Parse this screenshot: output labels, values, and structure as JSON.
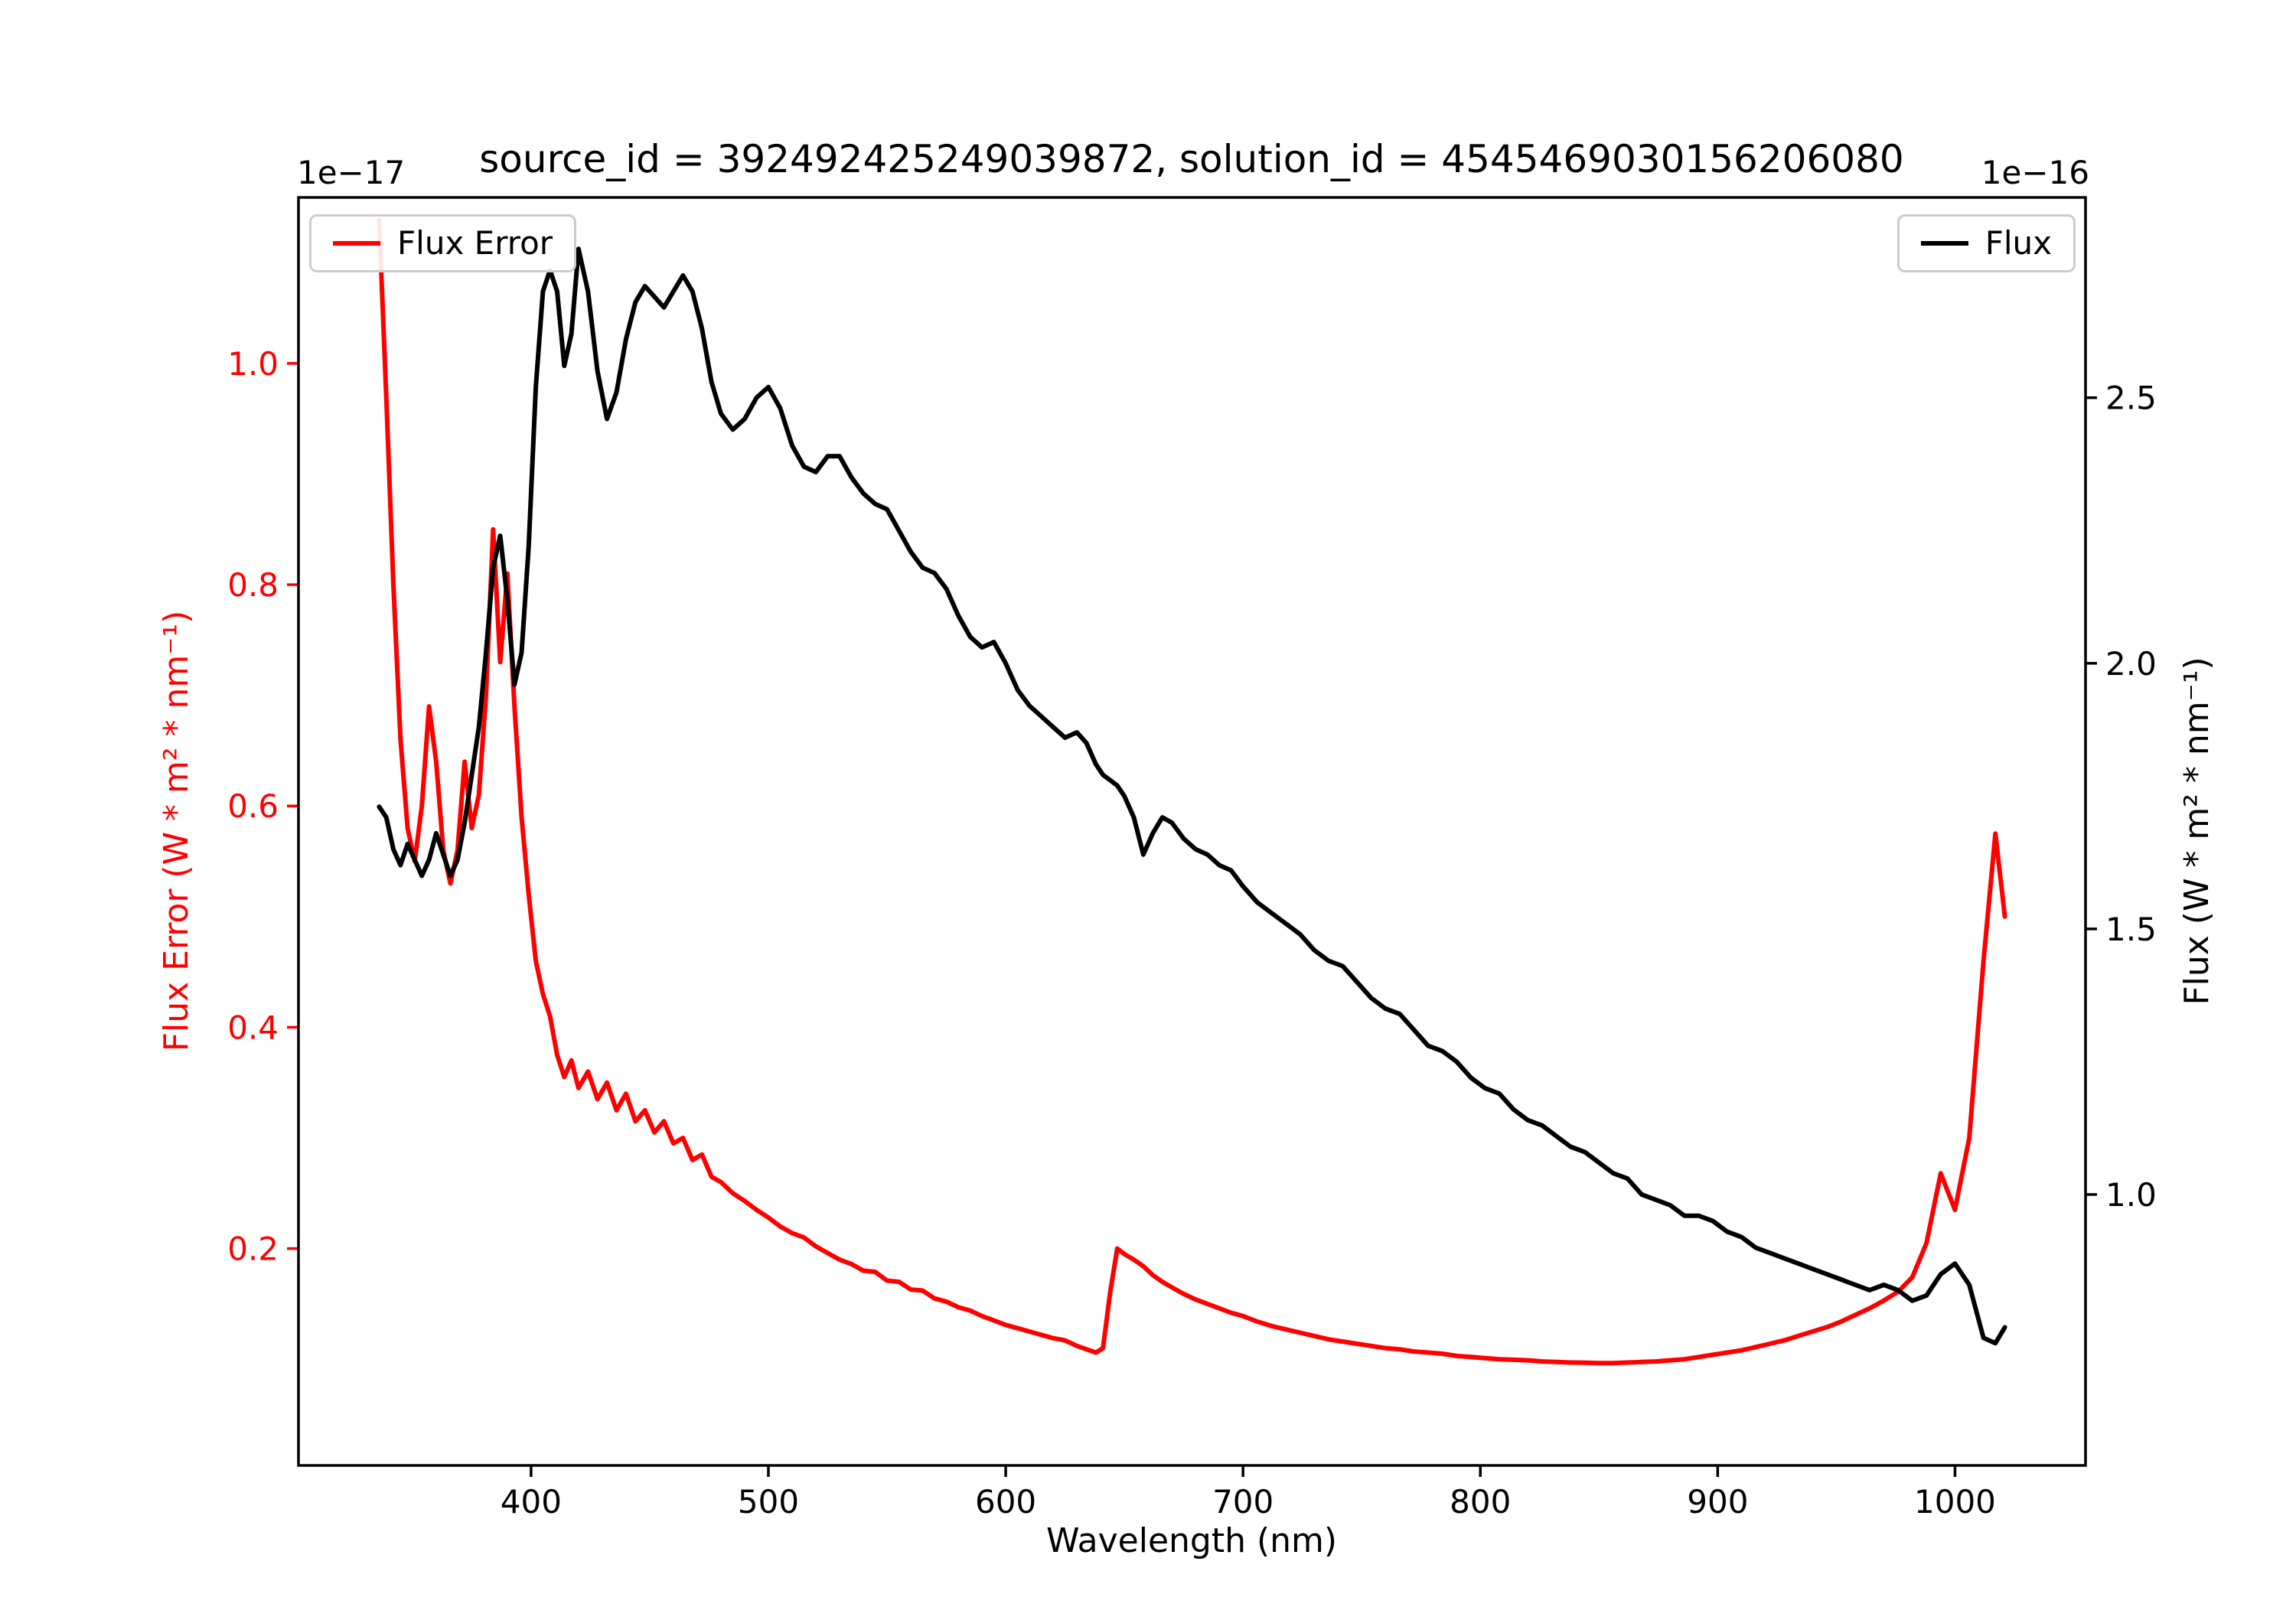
{
  "title": "source_id = 392492425249039872, solution_id = 4545469030156206080",
  "colors": {
    "flux_error": "#ff0000",
    "flux": "#000000",
    "axis": "#000000",
    "legend_edge": "#cccccc"
  },
  "legend": {
    "flux_error_label": "Flux Error",
    "flux_label": "Flux"
  },
  "chart_data": {
    "type": "line",
    "title": "source_id = 392492425249039872, solution_id = 4545469030156206080",
    "xlabel": "Wavelength (nm)",
    "ylabel_left": "Flux Error (W * m² * nm⁻¹)",
    "ylabel_right": "Flux (W * m² * nm⁻¹)",
    "left_scale_label": "1e−17",
    "right_scale_label": "1e−16",
    "grid": false,
    "legend_positions": [
      "upper left",
      "upper right"
    ],
    "x_axis": {
      "min": 302,
      "max": 1055,
      "ticks": [
        400,
        500,
        600,
        700,
        800,
        900,
        1000
      ]
    },
    "y_left": {
      "min": 0.004,
      "max": 1.15,
      "ticks": [
        0.2,
        0.4,
        0.6,
        0.8,
        1.0
      ],
      "units": "1e-17 W * m^2 * nm^-1"
    },
    "y_right": {
      "min": 0.49,
      "max": 2.877,
      "ticks": [
        1.0,
        1.5,
        2.0,
        2.5
      ],
      "units": "1e-16 W * m^2 * nm^-1"
    },
    "x": [
      336,
      339,
      342,
      345,
      348,
      351,
      354,
      357,
      360,
      363,
      366,
      369,
      372,
      375,
      378,
      381,
      384,
      387,
      390,
      393,
      396,
      399,
      402,
      405,
      408,
      411,
      414,
      417,
      420,
      424,
      428,
      432,
      436,
      440,
      444,
      448,
      452,
      456,
      460,
      464,
      468,
      472,
      476,
      480,
      485,
      490,
      495,
      500,
      505,
      510,
      515,
      520,
      525,
      530,
      535,
      540,
      545,
      550,
      555,
      560,
      565,
      570,
      575,
      580,
      585,
      590,
      595,
      600,
      605,
      610,
      615,
      620,
      625,
      630,
      634,
      638,
      641,
      644,
      647,
      650,
      654,
      658,
      662,
      666,
      670,
      675,
      680,
      685,
      690,
      695,
      700,
      706,
      712,
      718,
      724,
      730,
      736,
      742,
      748,
      754,
      760,
      766,
      772,
      778,
      784,
      790,
      796,
      802,
      808,
      814,
      820,
      826,
      832,
      838,
      844,
      850,
      856,
      862,
      868,
      874,
      880,
      886,
      892,
      898,
      904,
      910,
      916,
      922,
      928,
      934,
      940,
      946,
      952,
      958,
      964,
      970,
      976,
      982,
      988,
      994,
      1000,
      1006,
      1012,
      1017,
      1021
    ],
    "series": [
      {
        "name": "Flux Error",
        "axis": "left",
        "color": "#ff0000",
        "values": [
          1.13,
          0.97,
          0.8,
          0.66,
          0.58,
          0.55,
          0.6,
          0.69,
          0.64,
          0.56,
          0.53,
          0.56,
          0.64,
          0.58,
          0.61,
          0.7,
          0.85,
          0.73,
          0.81,
          0.69,
          0.59,
          0.52,
          0.46,
          0.43,
          0.41,
          0.375,
          0.355,
          0.37,
          0.345,
          0.36,
          0.335,
          0.35,
          0.325,
          0.34,
          0.315,
          0.325,
          0.305,
          0.315,
          0.295,
          0.3,
          0.28,
          0.285,
          0.265,
          0.26,
          0.25,
          0.243,
          0.235,
          0.228,
          0.22,
          0.214,
          0.21,
          0.202,
          0.196,
          0.19,
          0.186,
          0.18,
          0.179,
          0.171,
          0.17,
          0.163,
          0.162,
          0.155,
          0.152,
          0.147,
          0.144,
          0.139,
          0.135,
          0.131,
          0.128,
          0.125,
          0.122,
          0.119,
          0.117,
          0.112,
          0.109,
          0.106,
          0.11,
          0.16,
          0.2,
          0.195,
          0.19,
          0.184,
          0.176,
          0.17,
          0.165,
          0.159,
          0.154,
          0.15,
          0.146,
          0.142,
          0.139,
          0.134,
          0.13,
          0.127,
          0.124,
          0.121,
          0.118,
          0.116,
          0.114,
          0.112,
          0.11,
          0.109,
          0.107,
          0.106,
          0.105,
          0.103,
          0.102,
          0.101,
          0.1,
          0.0995,
          0.099,
          0.098,
          0.0975,
          0.097,
          0.0968,
          0.0965,
          0.0965,
          0.097,
          0.0975,
          0.098,
          0.099,
          0.1,
          0.102,
          0.104,
          0.106,
          0.108,
          0.111,
          0.114,
          0.117,
          0.121,
          0.125,
          0.129,
          0.134,
          0.14,
          0.146,
          0.153,
          0.161,
          0.174,
          0.205,
          0.268,
          0.235,
          0.3,
          0.46,
          0.575,
          0.5
        ]
      },
      {
        "name": "Flux",
        "axis": "right",
        "color": "#000000",
        "values": [
          1.73,
          1.71,
          1.65,
          1.62,
          1.66,
          1.63,
          1.6,
          1.63,
          1.68,
          1.64,
          1.6,
          1.63,
          1.7,
          1.79,
          1.88,
          2.02,
          2.18,
          2.24,
          2.12,
          1.96,
          2.02,
          2.22,
          2.52,
          2.7,
          2.74,
          2.7,
          2.56,
          2.62,
          2.78,
          2.7,
          2.55,
          2.46,
          2.51,
          2.61,
          2.68,
          2.71,
          2.69,
          2.67,
          2.7,
          2.73,
          2.7,
          2.63,
          2.53,
          2.47,
          2.44,
          2.46,
          2.5,
          2.52,
          2.48,
          2.41,
          2.37,
          2.36,
          2.39,
          2.39,
          2.35,
          2.32,
          2.3,
          2.29,
          2.25,
          2.21,
          2.18,
          2.17,
          2.14,
          2.09,
          2.05,
          2.03,
          2.04,
          2.0,
          1.95,
          1.92,
          1.9,
          1.88,
          1.86,
          1.87,
          1.85,
          1.81,
          1.79,
          1.78,
          1.77,
          1.75,
          1.71,
          1.64,
          1.68,
          1.71,
          1.7,
          1.67,
          1.65,
          1.64,
          1.62,
          1.61,
          1.58,
          1.55,
          1.53,
          1.51,
          1.49,
          1.46,
          1.44,
          1.43,
          1.4,
          1.37,
          1.35,
          1.34,
          1.31,
          1.28,
          1.27,
          1.25,
          1.22,
          1.2,
          1.19,
          1.16,
          1.14,
          1.13,
          1.11,
          1.09,
          1.08,
          1.06,
          1.04,
          1.03,
          1.0,
          0.99,
          0.98,
          0.96,
          0.96,
          0.95,
          0.93,
          0.92,
          0.9,
          0.89,
          0.88,
          0.87,
          0.86,
          0.85,
          0.84,
          0.83,
          0.82,
          0.83,
          0.82,
          0.8,
          0.81,
          0.85,
          0.87,
          0.83,
          0.73,
          0.72,
          0.75
        ]
      }
    ]
  }
}
